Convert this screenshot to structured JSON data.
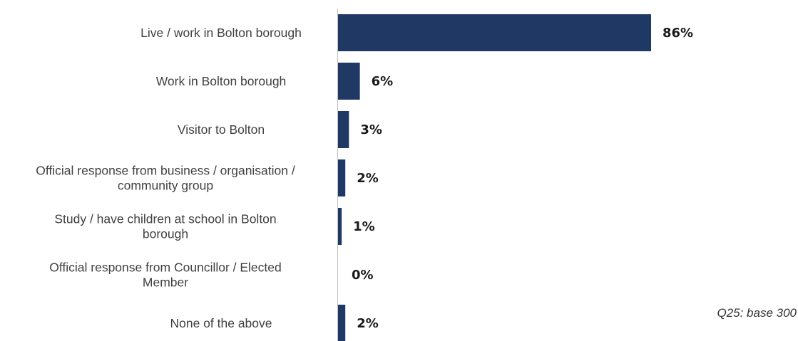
{
  "chart_data": {
    "type": "bar",
    "orientation": "horizontal",
    "categories": [
      [
        "Live / work in Bolton borough"
      ],
      [
        "Work in Bolton borough"
      ],
      [
        "Visitor to Bolton"
      ],
      [
        "Official response from business / organisation /",
        "community group"
      ],
      [
        "Study / have children at school in Bolton",
        "borough"
      ],
      [
        "Official response from Councillor / Elected",
        "Member"
      ],
      [
        "None of the above"
      ]
    ],
    "values": [
      86,
      6,
      3,
      2,
      1,
      0,
      2
    ],
    "value_labels": [
      "86%",
      "6%",
      "3%",
      "2%",
      "1%",
      "0%",
      "2%"
    ],
    "xlim": [
      0,
      100
    ],
    "unit": "%",
    "grid": false,
    "legend": "none",
    "bar_color": "#1f3864"
  },
  "footnote": "Q25: base 300"
}
